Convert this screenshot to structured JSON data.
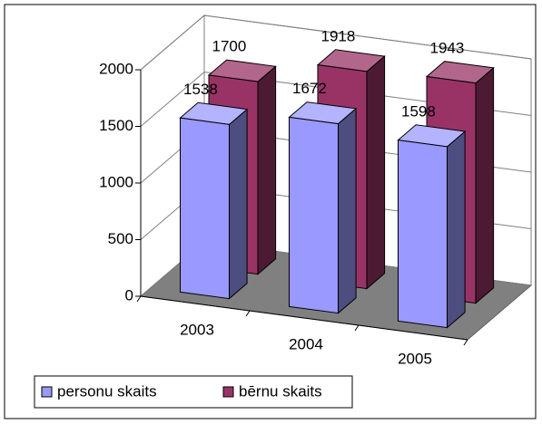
{
  "chart_data": {
    "type": "bar3d",
    "categories": [
      "2003",
      "2004",
      "2005"
    ],
    "series": [
      {
        "name": "personu skaits",
        "color": "#9999FF",
        "values": [
          1538,
          1672,
          1598
        ]
      },
      {
        "name": "bērnu skaits",
        "color": "#993366",
        "values": [
          1700,
          1918,
          1943
        ]
      }
    ],
    "ylim": [
      0,
      2000
    ],
    "yticks": [
      0,
      500,
      1000,
      1500,
      2000
    ],
    "grid": true,
    "legend": "bottom-left"
  }
}
